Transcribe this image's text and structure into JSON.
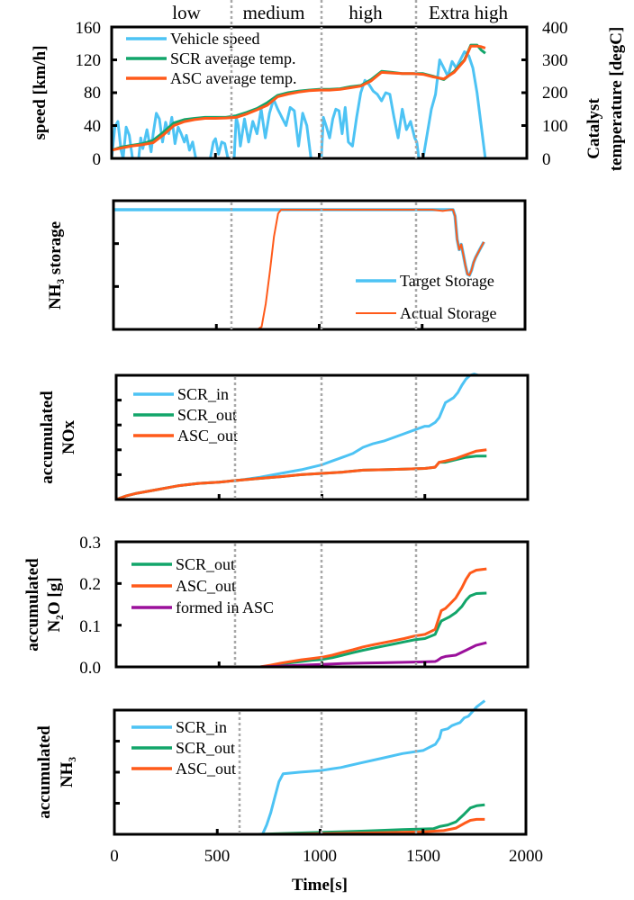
{
  "chart_data": [
    {
      "id": "speed-temp",
      "type": "line",
      "phases": [
        "low",
        "medium",
        "high",
        "Extra high"
      ],
      "phase_boundaries_s": [
        590,
        1022,
        1477
      ],
      "ylabel": "speed [km/h]",
      "ylabel_right": [
        "Catalyst",
        "temperature [degC]"
      ],
      "ylim": [
        0,
        160
      ],
      "ylim_right": [
        0,
        400
      ],
      "xlim": [
        0,
        2000
      ],
      "yticks": [
        "0",
        "40",
        "80",
        "120",
        "160"
      ],
      "yticks_right": [
        "0",
        "100",
        "200",
        "300",
        "400"
      ],
      "legend": "top-left",
      "series": [
        {
          "name": "Vehicle speed",
          "color": "#4dc3f4",
          "axis": "left",
          "x": [
            0,
            15,
            30,
            45,
            55,
            70,
            85,
            100,
            115,
            130,
            140,
            150,
            170,
            190,
            200,
            215,
            230,
            245,
            260,
            275,
            290,
            305,
            320,
            335,
            350,
            360,
            375,
            390,
            405,
            420,
            430,
            445,
            460,
            475,
            490,
            500,
            515,
            530,
            545,
            560,
            575,
            590,
            600,
            610,
            620,
            640,
            660,
            680,
            700,
            720,
            740,
            760,
            780,
            800,
            820,
            840,
            860,
            880,
            900,
            920,
            940,
            960,
            980,
            1000,
            1010,
            1020,
            1035,
            1050,
            1065,
            1080,
            1095,
            1110,
            1125,
            1140,
            1160,
            1180,
            1200,
            1220,
            1240,
            1260,
            1280,
            1300,
            1320,
            1340,
            1360,
            1380,
            1400,
            1420,
            1440,
            1460,
            1470,
            1480,
            1490,
            1500,
            1520,
            1540,
            1560,
            1580,
            1600,
            1620,
            1640,
            1660,
            1680,
            1700,
            1720,
            1740,
            1760,
            1780,
            1800
          ],
          "y": [
            0,
            38,
            45,
            10,
            0,
            38,
            28,
            0,
            0,
            0,
            25,
            12,
            35,
            8,
            30,
            55,
            48,
            20,
            44,
            30,
            50,
            18,
            38,
            30,
            20,
            28,
            10,
            20,
            0,
            0,
            0,
            0,
            0,
            0,
            20,
            24,
            5,
            20,
            18,
            0,
            0,
            0,
            50,
            40,
            15,
            48,
            20,
            45,
            30,
            60,
            25,
            55,
            72,
            60,
            50,
            40,
            62,
            58,
            15,
            55,
            40,
            0,
            0,
            0,
            0,
            50,
            38,
            25,
            48,
            60,
            58,
            30,
            62,
            20,
            15,
            50,
            80,
            95,
            90,
            82,
            78,
            70,
            80,
            78,
            50,
            25,
            60,
            35,
            45,
            25,
            20,
            0,
            0,
            0,
            30,
            60,
            78,
            120,
            110,
            100,
            118,
            110,
            120,
            130,
            125,
            110,
            80,
            40,
            0
          ]
        },
        {
          "name": "SCR average temp.",
          "color": "#12a56a",
          "axis": "right",
          "x": [
            0,
            50,
            100,
            150,
            200,
            250,
            300,
            350,
            400,
            450,
            500,
            550,
            600,
            650,
            700,
            750,
            800,
            850,
            900,
            950,
            1000,
            1050,
            1100,
            1150,
            1200,
            1250,
            1300,
            1350,
            1400,
            1450,
            1500,
            1550,
            1600,
            1650,
            1700,
            1730,
            1760,
            1780,
            1800
          ],
          "y": [
            25,
            35,
            40,
            45,
            55,
            80,
            108,
            118,
            122,
            125,
            125,
            125,
            130,
            140,
            152,
            170,
            192,
            200,
            205,
            208,
            210,
            210,
            212,
            218,
            222,
            240,
            265,
            262,
            258,
            258,
            258,
            250,
            240,
            265,
            300,
            345,
            345,
            330,
            320
          ]
        },
        {
          "name": "ASC average temp.",
          "color": "#ff5a1a",
          "axis": "right",
          "x": [
            0,
            50,
            100,
            150,
            200,
            250,
            300,
            350,
            400,
            450,
            500,
            550,
            600,
            650,
            700,
            750,
            800,
            850,
            900,
            950,
            1000,
            1050,
            1100,
            1150,
            1200,
            1250,
            1300,
            1350,
            1400,
            1450,
            1500,
            1550,
            1600,
            1650,
            1700,
            1730,
            1760,
            1780,
            1800
          ],
          "y": [
            25,
            32,
            38,
            42,
            48,
            72,
            100,
            112,
            118,
            122,
            122,
            123,
            125,
            135,
            148,
            162,
            188,
            196,
            202,
            206,
            208,
            208,
            210,
            215,
            220,
            236,
            262,
            260,
            258,
            258,
            256,
            248,
            242,
            262,
            298,
            342,
            342,
            340,
            336
          ]
        }
      ]
    },
    {
      "id": "nh3-storage",
      "type": "line",
      "ylabel": "NH₃ storage",
      "xlim": [
        0,
        2000
      ],
      "ylim": [
        0,
        1
      ],
      "yticks": [
        "",
        "",
        ""
      ],
      "legend": "bottom-right",
      "series": [
        {
          "name": "Target Storage",
          "color": "#4dc3f4",
          "x": [
            0,
            1650,
            1660,
            1670,
            1680,
            1690,
            1700,
            1710,
            1720,
            1730,
            1740,
            1750,
            1760,
            1780,
            1800
          ],
          "y": [
            0.93,
            0.93,
            0.88,
            0.7,
            0.62,
            0.66,
            0.58,
            0.5,
            0.43,
            0.42,
            0.46,
            0.52,
            0.56,
            0.62,
            0.68
          ]
        },
        {
          "name": "Actual Storage",
          "color": "#ff5a1a",
          "x": [
            0,
            700,
            720,
            740,
            760,
            780,
            800,
            815,
            1000,
            1300,
            1550,
            1600,
            1640,
            1650,
            1660,
            1670,
            1680,
            1690,
            1700,
            1710,
            1720,
            1730,
            1740,
            1750,
            1760,
            1780,
            1800
          ],
          "y": [
            0,
            0,
            0.02,
            0.2,
            0.45,
            0.72,
            0.9,
            0.93,
            0.93,
            0.93,
            0.93,
            0.92,
            0.93,
            0.93,
            0.88,
            0.7,
            0.62,
            0.66,
            0.58,
            0.5,
            0.43,
            0.42,
            0.46,
            0.52,
            0.56,
            0.62,
            0.68
          ]
        }
      ]
    },
    {
      "id": "acc-nox",
      "type": "line",
      "ylabel": [
        "accumulated",
        "NOx"
      ],
      "xlim": [
        0,
        2000
      ],
      "ylim": [
        0,
        5
      ],
      "yticks": [
        "",
        "",
        "",
        ""
      ],
      "legend": "top-left",
      "series": [
        {
          "name": "SCR_in",
          "color": "#4dc3f4",
          "x": [
            0,
            50,
            100,
            200,
            300,
            400,
            500,
            600,
            700,
            800,
            900,
            1000,
            1050,
            1100,
            1150,
            1200,
            1250,
            1300,
            1350,
            1400,
            1450,
            1500,
            1520,
            1550,
            1570,
            1580,
            1600,
            1620,
            1640,
            1660,
            1680,
            1700,
            1720,
            1740,
            1760,
            1800
          ],
          "y": [
            0,
            0.15,
            0.25,
            0.4,
            0.55,
            0.65,
            0.7,
            0.78,
            0.9,
            1.05,
            1.2,
            1.4,
            1.55,
            1.7,
            1.85,
            2.1,
            2.25,
            2.35,
            2.5,
            2.65,
            2.8,
            2.95,
            2.95,
            3.1,
            3.3,
            3.5,
            3.9,
            4.0,
            4.1,
            4.3,
            4.6,
            4.85,
            5.0,
            5.05,
            5.0,
            5.0
          ]
        },
        {
          "name": "SCR_out",
          "color": "#12a56a",
          "x": [
            0,
            50,
            100,
            200,
            300,
            400,
            500,
            600,
            700,
            800,
            900,
            1000,
            1100,
            1200,
            1300,
            1400,
            1500,
            1550,
            1570,
            1600,
            1650,
            1700,
            1750,
            1800
          ],
          "y": [
            0,
            0.15,
            0.25,
            0.4,
            0.55,
            0.65,
            0.7,
            0.78,
            0.85,
            0.92,
            1.0,
            1.05,
            1.1,
            1.18,
            1.2,
            1.22,
            1.25,
            1.3,
            1.5,
            1.5,
            1.6,
            1.7,
            1.75,
            1.75
          ]
        },
        {
          "name": "ASC_out",
          "color": "#ff5a1a",
          "x": [
            0,
            50,
            100,
            200,
            300,
            400,
            500,
            600,
            700,
            800,
            900,
            1000,
            1100,
            1200,
            1300,
            1400,
            1500,
            1550,
            1570,
            1600,
            1650,
            1700,
            1750,
            1800
          ],
          "y": [
            0,
            0.15,
            0.25,
            0.4,
            0.55,
            0.65,
            0.7,
            0.78,
            0.85,
            0.92,
            1.0,
            1.05,
            1.1,
            1.18,
            1.2,
            1.22,
            1.25,
            1.3,
            1.5,
            1.55,
            1.65,
            1.8,
            1.95,
            2.0
          ]
        }
      ]
    },
    {
      "id": "acc-n2o",
      "type": "line",
      "ylabel": [
        "accumulated",
        "N₂O [g]"
      ],
      "xlim": [
        0,
        2000
      ],
      "ylim": [
        0,
        0.3
      ],
      "yticks": [
        "0.0",
        "0.1",
        "0.2",
        "0.3"
      ],
      "legend": "top-left",
      "series": [
        {
          "name": "SCR_out",
          "color": "#12a56a",
          "x": [
            0,
            700,
            750,
            800,
            850,
            900,
            950,
            1000,
            1050,
            1100,
            1150,
            1200,
            1250,
            1300,
            1350,
            1400,
            1450,
            1500,
            1550,
            1570,
            1580,
            1600,
            1620,
            1650,
            1680,
            1700,
            1720,
            1750,
            1800
          ],
          "y": [
            0,
            0,
            0.002,
            0.006,
            0.01,
            0.013,
            0.016,
            0.018,
            0.022,
            0.028,
            0.034,
            0.04,
            0.045,
            0.05,
            0.055,
            0.06,
            0.065,
            0.068,
            0.078,
            0.1,
            0.11,
            0.115,
            0.12,
            0.13,
            0.145,
            0.16,
            0.17,
            0.176,
            0.177
          ]
        },
        {
          "name": "ASC_out",
          "color": "#ff5a1a",
          "x": [
            0,
            700,
            750,
            800,
            850,
            900,
            950,
            1000,
            1050,
            1100,
            1150,
            1200,
            1250,
            1300,
            1350,
            1400,
            1450,
            1500,
            1550,
            1570,
            1580,
            1600,
            1620,
            1650,
            1680,
            1700,
            1720,
            1750,
            1800
          ],
          "y": [
            0,
            0,
            0.004,
            0.009,
            0.013,
            0.017,
            0.02,
            0.023,
            0.028,
            0.035,
            0.041,
            0.048,
            0.053,
            0.058,
            0.063,
            0.068,
            0.074,
            0.078,
            0.09,
            0.12,
            0.135,
            0.14,
            0.15,
            0.165,
            0.19,
            0.21,
            0.225,
            0.232,
            0.235
          ]
        },
        {
          "name": "formed in ASC",
          "color": "#9b109b",
          "x": [
            0,
            700,
            800,
            900,
            1000,
            1100,
            1200,
            1300,
            1400,
            1500,
            1550,
            1560,
            1580,
            1600,
            1650,
            1700,
            1750,
            1800
          ],
          "y": [
            0,
            0,
            0.002,
            0.004,
            0.006,
            0.008,
            0.009,
            0.01,
            0.011,
            0.012,
            0.013,
            0.015,
            0.022,
            0.025,
            0.028,
            0.04,
            0.052,
            0.058
          ]
        }
      ]
    },
    {
      "id": "acc-nh3",
      "type": "line",
      "ylabel": [
        "accumulated",
        "NH₃"
      ],
      "xlabel": "Time[s]",
      "xlim": [
        0,
        2000
      ],
      "xticks": [
        "0",
        "500",
        "1000",
        "1500",
        "2000"
      ],
      "ylim": [
        0,
        4
      ],
      "yticks": [
        "",
        "",
        ""
      ],
      "legend": "top-left",
      "series": [
        {
          "name": "SCR_in",
          "color": "#4dc3f4",
          "x": [
            0,
            720,
            740,
            760,
            780,
            800,
            820,
            900,
            1000,
            1050,
            1100,
            1200,
            1300,
            1400,
            1500,
            1530,
            1560,
            1580,
            1590,
            1620,
            1640,
            1660,
            1680,
            1700,
            1720,
            1740,
            1760,
            1780,
            1800
          ],
          "y": [
            0,
            0,
            0.3,
            0.7,
            1.2,
            1.7,
            1.95,
            2.0,
            2.05,
            2.1,
            2.15,
            2.3,
            2.45,
            2.6,
            2.7,
            2.8,
            2.9,
            3.1,
            3.35,
            3.4,
            3.5,
            3.55,
            3.6,
            3.75,
            3.8,
            3.95,
            4.1,
            4.2,
            4.3
          ]
        },
        {
          "name": "SCR_out",
          "color": "#12a56a",
          "x": [
            0,
            700,
            800,
            1000,
            1200,
            1400,
            1550,
            1580,
            1620,
            1660,
            1700,
            1730,
            1760,
            1800
          ],
          "y": [
            0,
            0,
            0.02,
            0.06,
            0.1,
            0.15,
            0.18,
            0.25,
            0.3,
            0.4,
            0.65,
            0.85,
            0.92,
            0.95
          ]
        },
        {
          "name": "ASC_out",
          "color": "#ff5a1a",
          "x": [
            0,
            700,
            900,
            1100,
            1300,
            1500,
            1600,
            1660,
            1700,
            1730,
            1760,
            1800
          ],
          "y": [
            0,
            0,
            0.01,
            0.03,
            0.05,
            0.08,
            0.12,
            0.2,
            0.35,
            0.45,
            0.48,
            0.48
          ]
        }
      ]
    }
  ]
}
